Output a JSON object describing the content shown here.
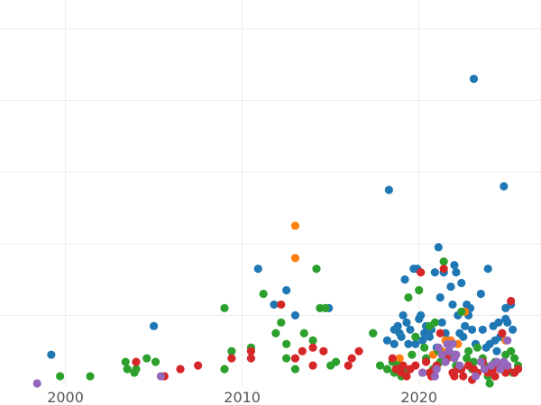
{
  "chart_data": {
    "type": "scatter",
    "title": "",
    "xlabel": "",
    "ylabel": "",
    "xlim": [
      1996.3,
      2026.9
    ],
    "ylim": [
      0,
      10.8
    ],
    "x_ticks": [
      2000,
      2010,
      2020
    ],
    "x_tick_labels": [
      "2000",
      "2010",
      "2020"
    ],
    "y_gridlines": [
      2,
      4,
      6,
      8,
      10
    ],
    "grid": true,
    "legend": "none",
    "series": [
      {
        "color": "#1f77b4",
        "points": [
          [
            1999.2,
            0.9
          ],
          [
            2005.0,
            1.7
          ],
          [
            2010.9,
            3.3
          ],
          [
            2011.8,
            2.3
          ],
          [
            2012.5,
            2.7
          ],
          [
            2013.0,
            2.0
          ],
          [
            2014.9,
            2.2
          ],
          [
            2017.4,
            1.5
          ],
          [
            2018.3,
            5.5
          ],
          [
            2018.6,
            1.2
          ],
          [
            2018.6,
            1.6
          ],
          [
            2018.8,
            1.7
          ],
          [
            2018.9,
            1.5
          ],
          [
            2019.1,
            2.0
          ],
          [
            2019.2,
            3.0
          ],
          [
            2019.3,
            1.8
          ],
          [
            2019.4,
            1.2
          ],
          [
            2019.5,
            1.6
          ],
          [
            2019.7,
            3.3
          ],
          [
            2019.9,
            3.3
          ],
          [
            2020.0,
            1.9
          ],
          [
            2020.1,
            2.0
          ],
          [
            2020.3,
            1.5
          ],
          [
            2020.4,
            1.7
          ],
          [
            2020.6,
            1.4
          ],
          [
            2020.9,
            3.2
          ],
          [
            2021.1,
            3.9
          ],
          [
            2021.2,
            2.5
          ],
          [
            2021.4,
            3.2
          ],
          [
            2021.5,
            1.5
          ],
          [
            2021.7,
            1.3
          ],
          [
            2021.8,
            2.8
          ],
          [
            2021.9,
            2.3
          ],
          [
            2022.0,
            3.4
          ],
          [
            2022.1,
            3.2
          ],
          [
            2022.2,
            2.0
          ],
          [
            2022.3,
            1.5
          ],
          [
            2022.4,
            2.9
          ],
          [
            2022.7,
            2.3
          ],
          [
            2022.8,
            2.0
          ],
          [
            2022.9,
            2.2
          ],
          [
            2023.0,
            1.6
          ],
          [
            2023.1,
            8.6
          ],
          [
            2023.5,
            2.6
          ],
          [
            2023.6,
            1.6
          ],
          [
            2023.9,
            3.3
          ],
          [
            2024.2,
            1.7
          ],
          [
            2024.3,
            1.3
          ],
          [
            2024.4,
            1.0
          ],
          [
            2024.5,
            1.8
          ],
          [
            2024.8,
            5.6
          ],
          [
            2024.9,
            2.2
          ],
          [
            2024.9,
            1.9
          ],
          [
            2025.0,
            1.8
          ],
          [
            2025.2,
            2.3
          ],
          [
            2025.3,
            1.6
          ],
          [
            2019.0,
            1.4
          ],
          [
            2020.2,
            1.3
          ],
          [
            2021.0,
            1.1
          ],
          [
            2022.5,
            1.4
          ],
          [
            2023.2,
            1.2
          ],
          [
            2024.0,
            1.2
          ],
          [
            2024.6,
            1.4
          ],
          [
            2018.2,
            1.3
          ],
          [
            2019.8,
            1.2
          ],
          [
            2020.7,
            1.6
          ],
          [
            2021.3,
            1.8
          ],
          [
            2022.6,
            1.7
          ],
          [
            2023.8,
            1.1
          ],
          [
            2024.7,
            1.5
          ]
        ]
      },
      {
        "color": "#ff7f0e",
        "points": [
          [
            2013.0,
            4.5
          ],
          [
            2013.0,
            3.6
          ],
          [
            2018.9,
            0.8
          ],
          [
            2021.5,
            1.3
          ],
          [
            2021.8,
            1.3
          ],
          [
            2022.2,
            1.2
          ],
          [
            2022.6,
            2.1
          ],
          [
            2021.3,
            1.0
          ],
          [
            2024.9,
            1.3
          ],
          [
            2020.8,
            0.9
          ]
        ]
      },
      {
        "color": "#2ca02c",
        "points": [
          [
            1999.7,
            0.3
          ],
          [
            2001.4,
            0.3
          ],
          [
            2003.4,
            0.7
          ],
          [
            2003.5,
            0.5
          ],
          [
            2003.9,
            0.4
          ],
          [
            2004.0,
            0.5
          ],
          [
            2004.6,
            0.8
          ],
          [
            2005.1,
            0.7
          ],
          [
            2009.0,
            2.2
          ],
          [
            2009.0,
            0.5
          ],
          [
            2009.4,
            1.0
          ],
          [
            2010.5,
            1.1
          ],
          [
            2011.2,
            2.6
          ],
          [
            2011.9,
            1.5
          ],
          [
            2012.2,
            1.8
          ],
          [
            2012.5,
            1.2
          ],
          [
            2012.5,
            0.8
          ],
          [
            2013.0,
            0.5
          ],
          [
            2013.5,
            1.5
          ],
          [
            2014.0,
            1.3
          ],
          [
            2014.2,
            3.3
          ],
          [
            2014.4,
            2.2
          ],
          [
            2014.7,
            2.2
          ],
          [
            2015.0,
            0.6
          ],
          [
            2015.3,
            0.7
          ],
          [
            2017.4,
            1.5
          ],
          [
            2017.8,
            0.6
          ],
          [
            2018.2,
            0.5
          ],
          [
            2018.6,
            0.4
          ],
          [
            2018.8,
            0.6
          ],
          [
            2019.0,
            0.3
          ],
          [
            2019.4,
            2.5
          ],
          [
            2019.8,
            1.4
          ],
          [
            2020.0,
            2.7
          ],
          [
            2020.3,
            1.1
          ],
          [
            2020.6,
            1.7
          ],
          [
            2020.9,
            1.8
          ],
          [
            2021.1,
            1.0
          ],
          [
            2021.4,
            3.5
          ],
          [
            2021.7,
            0.9
          ],
          [
            2022.1,
            0.6
          ],
          [
            2022.4,
            2.1
          ],
          [
            2022.8,
            1.0
          ],
          [
            2023.0,
            0.5
          ],
          [
            2023.3,
            1.1
          ],
          [
            2023.6,
            0.8
          ],
          [
            2023.9,
            0.3
          ],
          [
            2024.0,
            0.1
          ],
          [
            2024.3,
            0.7
          ],
          [
            2024.6,
            0.5
          ],
          [
            2024.9,
            0.9
          ],
          [
            2025.2,
            1.0
          ],
          [
            2025.4,
            0.8
          ],
          [
            2025.6,
            0.6
          ],
          [
            2018.5,
            0.7
          ],
          [
            2019.6,
            0.9
          ],
          [
            2020.4,
            0.8
          ],
          [
            2021.2,
            0.7
          ],
          [
            2022.0,
            0.9
          ],
          [
            2023.1,
            0.7
          ],
          [
            2024.1,
            0.6
          ],
          [
            2025.0,
            0.5
          ],
          [
            2019.2,
            0.5
          ],
          [
            2020.8,
            0.5
          ],
          [
            2022.7,
            0.8
          ],
          [
            2023.7,
            0.6
          ],
          [
            2024.8,
            0.7
          ],
          [
            2025.3,
            0.4
          ]
        ]
      },
      {
        "color": "#d62728",
        "points": [
          [
            2004.0,
            0.7
          ],
          [
            2005.6,
            0.3
          ],
          [
            2006.5,
            0.5
          ],
          [
            2007.5,
            0.6
          ],
          [
            2009.4,
            0.8
          ],
          [
            2010.5,
            0.8
          ],
          [
            2010.5,
            1.0
          ],
          [
            2012.2,
            2.3
          ],
          [
            2013.0,
            0.8
          ],
          [
            2013.4,
            1.0
          ],
          [
            2014.0,
            0.6
          ],
          [
            2014.0,
            1.1
          ],
          [
            2014.6,
            1.0
          ],
          [
            2016.0,
            0.6
          ],
          [
            2016.2,
            0.8
          ],
          [
            2016.6,
            1.0
          ],
          [
            2018.5,
            0.8
          ],
          [
            2018.7,
            0.5
          ],
          [
            2019.0,
            0.4
          ],
          [
            2019.3,
            0.3
          ],
          [
            2019.5,
            0.5
          ],
          [
            2019.8,
            0.6
          ],
          [
            2020.1,
            3.2
          ],
          [
            2020.4,
            0.7
          ],
          [
            2020.7,
            0.3
          ],
          [
            2020.9,
            0.5
          ],
          [
            2021.2,
            1.5
          ],
          [
            2021.4,
            3.3
          ],
          [
            2021.6,
            0.8
          ],
          [
            2021.9,
            0.4
          ],
          [
            2022.2,
            0.5
          ],
          [
            2022.5,
            0.3
          ],
          [
            2022.8,
            0.6
          ],
          [
            2023.0,
            0.2
          ],
          [
            2023.3,
            0.4
          ],
          [
            2023.6,
            0.7
          ],
          [
            2023.9,
            0.4
          ],
          [
            2024.2,
            0.5
          ],
          [
            2024.5,
            0.6
          ],
          [
            2024.7,
            1.5
          ],
          [
            2025.0,
            0.5
          ],
          [
            2025.2,
            2.4
          ],
          [
            2025.4,
            0.4
          ],
          [
            2025.6,
            0.5
          ],
          [
            2019.1,
            0.6
          ],
          [
            2020.2,
            0.4
          ],
          [
            2021.0,
            0.6
          ],
          [
            2022.0,
            0.3
          ],
          [
            2023.1,
            0.5
          ],
          [
            2024.3,
            0.3
          ],
          [
            2024.9,
            0.4
          ],
          [
            2018.9,
            0.5
          ],
          [
            2020.6,
            0.4
          ],
          [
            2022.4,
            0.5
          ],
          [
            2023.8,
            0.5
          ]
        ]
      },
      {
        "color": "#9467bd",
        "points": [
          [
            1998.4,
            0.1
          ],
          [
            2005.4,
            0.3
          ],
          [
            2020.2,
            0.4
          ],
          [
            2020.9,
            0.3
          ],
          [
            2021.1,
            1.1
          ],
          [
            2021.3,
            0.9
          ],
          [
            2021.5,
            0.7
          ],
          [
            2021.7,
            1.0
          ],
          [
            2021.9,
            1.2
          ],
          [
            2022.1,
            0.9
          ],
          [
            2022.3,
            0.6
          ],
          [
            2023.2,
            0.3
          ],
          [
            2023.5,
            0.7
          ],
          [
            2023.7,
            0.5
          ],
          [
            2024.1,
            0.6
          ],
          [
            2024.4,
            0.7
          ],
          [
            2024.6,
            0.5
          ],
          [
            2024.8,
            0.7
          ],
          [
            2025.0,
            0.6
          ],
          [
            2025.0,
            1.3
          ],
          [
            2021.0,
            0.5
          ],
          [
            2022.0,
            0.8
          ],
          [
            2021.6,
            1.2
          ]
        ]
      }
    ]
  }
}
